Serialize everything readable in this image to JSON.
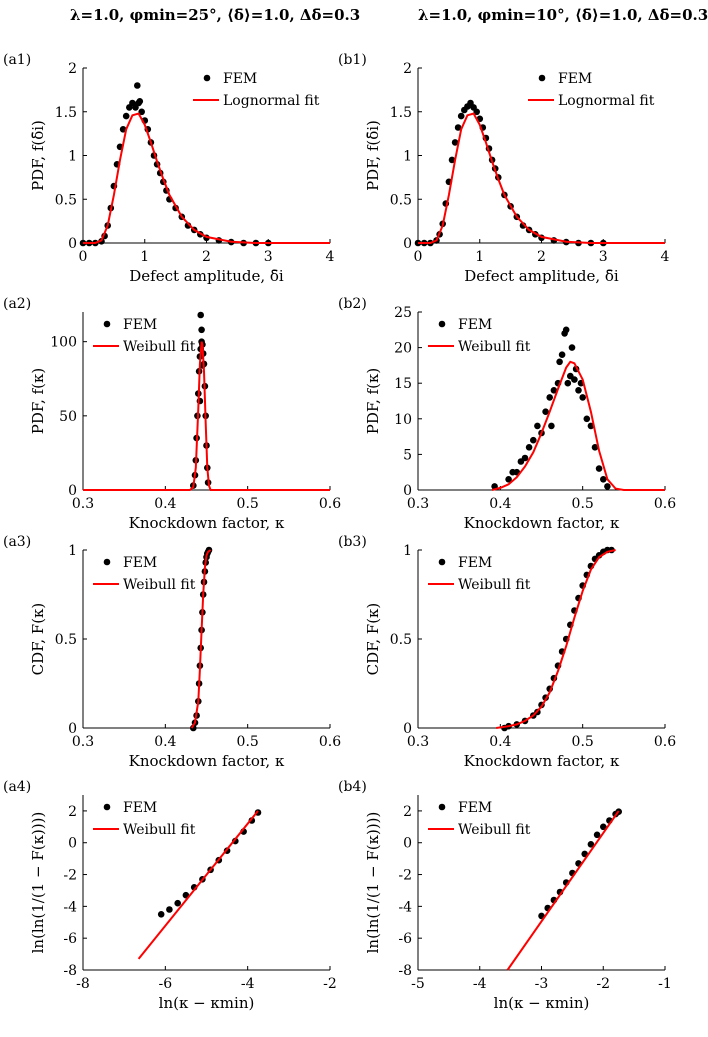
{
  "column_titles": [
    "λ=1.0, φmin=25°, ⟨δ̄⟩=1.0, Δδ̄=0.3",
    "λ=1.0, φmin=10°, ⟨δ̄⟩=1.0, Δδ̄=0.3"
  ],
  "colors": {
    "fem": "#000000",
    "fit": "#ff0000",
    "axis": "#000000"
  },
  "chart_data": [
    {
      "id": "a1",
      "panel_label": "(a1)",
      "type": "scatter",
      "title": "",
      "xlabel": "Defect amplitude, δ̄i",
      "ylabel": "PDF, f(δ̄i)",
      "xlim": [
        0,
        4
      ],
      "ylim": [
        0,
        2
      ],
      "xticks": [
        0,
        1,
        2,
        3,
        4
      ],
      "yticks": [
        0,
        0.5,
        1,
        1.5,
        2
      ],
      "tick_labels_x": [
        "0",
        "1",
        "2",
        "3",
        "4"
      ],
      "tick_labels_y": [
        "0",
        "0.5",
        "1",
        "1.5",
        "2"
      ],
      "legend_position": "top-right",
      "series": [
        {
          "name": "FEM",
          "kind": "points",
          "x": [
            0.0,
            0.1,
            0.2,
            0.3,
            0.35,
            0.4,
            0.45,
            0.5,
            0.55,
            0.6,
            0.65,
            0.7,
            0.75,
            0.8,
            0.85,
            0.9,
            0.95,
            1.0,
            1.05,
            1.1,
            1.15,
            1.2,
            1.25,
            1.3,
            1.35,
            1.4,
            1.5,
            1.6,
            1.7,
            1.8,
            1.9,
            2.0,
            2.2,
            2.4,
            2.6,
            2.8,
            3.0,
            0.88,
            0.92
          ],
          "y": [
            0.0,
            0.0,
            0.0,
            0.02,
            0.08,
            0.2,
            0.4,
            0.65,
            0.9,
            1.1,
            1.3,
            1.45,
            1.55,
            1.6,
            1.55,
            1.6,
            1.5,
            1.4,
            1.3,
            1.15,
            1.0,
            0.9,
            0.8,
            0.7,
            0.6,
            0.5,
            0.4,
            0.3,
            0.2,
            0.15,
            0.1,
            0.06,
            0.03,
            0.01,
            0.0,
            0.0,
            0.0,
            1.8,
            1.62
          ]
        },
        {
          "name": "Lognormal fit",
          "kind": "line",
          "x": [
            0,
            0.2,
            0.3,
            0.4,
            0.5,
            0.6,
            0.7,
            0.8,
            0.9,
            1.0,
            1.1,
            1.2,
            1.3,
            1.4,
            1.6,
            1.8,
            2.0,
            2.4,
            2.8,
            3.2,
            4.0
          ],
          "y": [
            0,
            0.0,
            0.03,
            0.2,
            0.55,
            0.95,
            1.3,
            1.46,
            1.48,
            1.35,
            1.15,
            0.93,
            0.73,
            0.55,
            0.3,
            0.15,
            0.07,
            0.015,
            0.0,
            0.0,
            0.0
          ]
        }
      ]
    },
    {
      "id": "b1",
      "panel_label": "(b1)",
      "type": "scatter",
      "title": "",
      "xlabel": "Defect amplitude, δ̄i",
      "ylabel": "PDF, f(δ̄i)",
      "xlim": [
        0,
        4
      ],
      "ylim": [
        0,
        2
      ],
      "xticks": [
        0,
        1,
        2,
        3,
        4
      ],
      "yticks": [
        0,
        0.5,
        1,
        1.5,
        2
      ],
      "tick_labels_x": [
        "0",
        "1",
        "2",
        "3",
        "4"
      ],
      "tick_labels_y": [
        "0",
        "0.5",
        "1",
        "1.5",
        "2"
      ],
      "legend_position": "top-right",
      "series": [
        {
          "name": "FEM",
          "kind": "points",
          "x": [
            0.0,
            0.1,
            0.2,
            0.3,
            0.35,
            0.4,
            0.45,
            0.5,
            0.55,
            0.6,
            0.65,
            0.7,
            0.75,
            0.8,
            0.85,
            0.9,
            0.95,
            1.0,
            1.05,
            1.1,
            1.15,
            1.2,
            1.25,
            1.3,
            1.4,
            1.5,
            1.6,
            1.7,
            1.8,
            1.9,
            2.0,
            2.2,
            2.4,
            2.6,
            2.8,
            3.0
          ],
          "y": [
            0.0,
            0.0,
            0.0,
            0.03,
            0.1,
            0.22,
            0.45,
            0.7,
            0.95,
            1.15,
            1.32,
            1.45,
            1.52,
            1.56,
            1.6,
            1.55,
            1.5,
            1.42,
            1.32,
            1.2,
            1.08,
            0.95,
            0.85,
            0.75,
            0.55,
            0.42,
            0.3,
            0.2,
            0.15,
            0.1,
            0.06,
            0.03,
            0.01,
            0.0,
            0.0,
            0.0
          ]
        },
        {
          "name": "Lognormal fit",
          "kind": "line",
          "x": [
            0,
            0.2,
            0.3,
            0.4,
            0.5,
            0.6,
            0.7,
            0.8,
            0.9,
            1.0,
            1.1,
            1.2,
            1.3,
            1.4,
            1.6,
            1.8,
            2.0,
            2.4,
            2.8,
            3.2,
            4.0
          ],
          "y": [
            0,
            0.0,
            0.03,
            0.2,
            0.55,
            0.95,
            1.3,
            1.46,
            1.48,
            1.35,
            1.15,
            0.93,
            0.73,
            0.55,
            0.3,
            0.15,
            0.07,
            0.015,
            0.0,
            0.0,
            0.0
          ]
        }
      ]
    },
    {
      "id": "a2",
      "panel_label": "(a2)",
      "type": "scatter",
      "title": "",
      "xlabel": "Knockdown factor, κ",
      "ylabel": "PDF, f(κ)",
      "xlim": [
        0.3,
        0.6
      ],
      "ylim": [
        0,
        120
      ],
      "xticks": [
        0.3,
        0.4,
        0.5,
        0.6
      ],
      "yticks": [
        0,
        50,
        100
      ],
      "tick_labels_x": [
        "0.3",
        "0.4",
        "0.5",
        "0.6"
      ],
      "tick_labels_y": [
        "0",
        "50",
        "100"
      ],
      "legend_position": "top-left",
      "series": [
        {
          "name": "FEM",
          "kind": "points",
          "x": [
            0.434,
            0.436,
            0.437,
            0.438,
            0.439,
            0.44,
            0.441,
            0.442,
            0.443,
            0.444,
            0.445,
            0.446,
            0.447,
            0.448,
            0.449,
            0.45,
            0.451,
            0.452,
            0.443,
            0.444,
            0.445,
            0.442
          ],
          "y": [
            3,
            10,
            20,
            35,
            50,
            65,
            80,
            90,
            95,
            100,
            98,
            92,
            85,
            70,
            50,
            30,
            15,
            5,
            118,
            108,
            84,
            60
          ]
        },
        {
          "name": "Weibull fit",
          "kind": "line",
          "x": [
            0.3,
            0.43,
            0.434,
            0.437,
            0.44,
            0.442,
            0.444,
            0.445,
            0.447,
            0.449,
            0.451,
            0.453,
            0.455,
            0.6
          ],
          "y": [
            0,
            0,
            2,
            15,
            55,
            85,
            100,
            98,
            80,
            45,
            15,
            3,
            0,
            0
          ]
        }
      ]
    },
    {
      "id": "b2",
      "panel_label": "(b2)",
      "type": "scatter",
      "title": "",
      "xlabel": "Knockdown factor, κ",
      "ylabel": "PDF, f(κ)",
      "xlim": [
        0.3,
        0.6
      ],
      "ylim": [
        0,
        25
      ],
      "xticks": [
        0.3,
        0.4,
        0.5,
        0.6
      ],
      "yticks": [
        0,
        5,
        10,
        15,
        20,
        25
      ],
      "tick_labels_x": [
        "0.3",
        "0.4",
        "0.5",
        "0.6"
      ],
      "tick_labels_y": [
        "0",
        "5",
        "10",
        "15",
        "20",
        "25"
      ],
      "legend_position": "top-left",
      "series": [
        {
          "name": "FEM",
          "kind": "points",
          "x": [
            0.393,
            0.41,
            0.415,
            0.42,
            0.425,
            0.43,
            0.435,
            0.44,
            0.445,
            0.45,
            0.455,
            0.46,
            0.462,
            0.465,
            0.47,
            0.472,
            0.475,
            0.478,
            0.48,
            0.482,
            0.485,
            0.487,
            0.49,
            0.492,
            0.495,
            0.498,
            0.5,
            0.505,
            0.51,
            0.515,
            0.52,
            0.525,
            0.53
          ],
          "y": [
            0.5,
            1.5,
            2.5,
            2.5,
            4,
            4.5,
            6,
            7,
            9,
            8,
            11,
            13,
            9,
            14,
            15,
            18,
            19,
            22,
            22.5,
            15,
            16,
            20,
            15.5,
            17,
            14,
            15,
            13,
            10,
            9,
            6,
            3,
            1.5,
            0.5
          ]
        },
        {
          "name": "Weibull fit",
          "kind": "line",
          "x": [
            0.39,
            0.4,
            0.41,
            0.42,
            0.43,
            0.44,
            0.45,
            0.46,
            0.47,
            0.48,
            0.485,
            0.49,
            0.5,
            0.51,
            0.52,
            0.53,
            0.54,
            0.55,
            0.6
          ],
          "y": [
            0,
            0.3,
            0.8,
            1.8,
            3.3,
            5.3,
            8,
            11,
            14.2,
            17.2,
            18,
            17.8,
            15.5,
            11,
            5.5,
            1.5,
            0.2,
            0,
            0
          ]
        }
      ]
    },
    {
      "id": "a3",
      "panel_label": "(a3)",
      "type": "scatter",
      "title": "",
      "xlabel": "Knockdown factor, κ",
      "ylabel": "CDF, F(κ)",
      "xlim": [
        0.3,
        0.6
      ],
      "ylim": [
        0,
        1
      ],
      "xticks": [
        0.3,
        0.4,
        0.5,
        0.6
      ],
      "yticks": [
        0,
        0.5,
        1
      ],
      "tick_labels_x": [
        "0.3",
        "0.4",
        "0.5",
        "0.6"
      ],
      "tick_labels_y": [
        "0",
        "0.5",
        "1"
      ],
      "legend_position": "top-left",
      "series": [
        {
          "name": "FEM",
          "kind": "points",
          "x": [
            0.434,
            0.436,
            0.438,
            0.44,
            0.441,
            0.442,
            0.443,
            0.444,
            0.445,
            0.446,
            0.447,
            0.448,
            0.449,
            0.45,
            0.451,
            0.452,
            0.453
          ],
          "y": [
            0.0,
            0.03,
            0.07,
            0.15,
            0.25,
            0.35,
            0.45,
            0.55,
            0.65,
            0.75,
            0.82,
            0.88,
            0.93,
            0.96,
            0.98,
            0.99,
            1.0
          ]
        },
        {
          "name": "Weibull fit",
          "kind": "line",
          "x": [
            0.432,
            0.436,
            0.44,
            0.442,
            0.444,
            0.446,
            0.448,
            0.45,
            0.452,
            0.455
          ],
          "y": [
            0,
            0.03,
            0.15,
            0.33,
            0.55,
            0.75,
            0.9,
            0.97,
            0.99,
            1.0
          ]
        }
      ]
    },
    {
      "id": "b3",
      "panel_label": "(b3)",
      "type": "scatter",
      "title": "",
      "xlabel": "Knockdown factor, κ",
      "ylabel": "CDF, F(κ)",
      "xlim": [
        0.3,
        0.6
      ],
      "ylim": [
        0,
        1
      ],
      "xticks": [
        0.3,
        0.4,
        0.5,
        0.6
      ],
      "yticks": [
        0,
        0.5,
        1
      ],
      "tick_labels_x": [
        "0.3",
        "0.4",
        "0.5",
        "0.6"
      ],
      "tick_labels_y": [
        "0",
        "0.5",
        "1"
      ],
      "legend_position": "top-left",
      "series": [
        {
          "name": "FEM",
          "kind": "points",
          "x": [
            0.405,
            0.41,
            0.42,
            0.43,
            0.44,
            0.445,
            0.45,
            0.455,
            0.46,
            0.465,
            0.47,
            0.475,
            0.48,
            0.485,
            0.49,
            0.495,
            0.5,
            0.505,
            0.51,
            0.515,
            0.52,
            0.525,
            0.53,
            0.535
          ],
          "y": [
            0.0,
            0.01,
            0.02,
            0.04,
            0.07,
            0.09,
            0.13,
            0.17,
            0.22,
            0.28,
            0.35,
            0.43,
            0.5,
            0.58,
            0.66,
            0.73,
            0.8,
            0.86,
            0.91,
            0.95,
            0.97,
            0.99,
            1.0,
            1.0
          ]
        },
        {
          "name": "Weibull fit",
          "kind": "line",
          "x": [
            0.395,
            0.41,
            0.42,
            0.43,
            0.44,
            0.45,
            0.46,
            0.47,
            0.48,
            0.49,
            0.5,
            0.51,
            0.52,
            0.53,
            0.54
          ],
          "y": [
            0,
            0.01,
            0.02,
            0.04,
            0.07,
            0.12,
            0.2,
            0.32,
            0.46,
            0.62,
            0.77,
            0.89,
            0.96,
            0.99,
            1.0
          ]
        }
      ]
    },
    {
      "id": "a4",
      "panel_label": "(a4)",
      "type": "scatter",
      "title": "",
      "xlabel": "ln(κ − κmin)",
      "ylabel": "ln(ln(1/(1 − F(κ))))",
      "xlim": [
        -8,
        -2
      ],
      "ylim": [
        -8,
        3
      ],
      "xticks": [
        -8,
        -6,
        -4,
        -2
      ],
      "yticks": [
        -8,
        -6,
        -4,
        -2,
        0,
        2
      ],
      "tick_labels_x": [
        "-8",
        "-6",
        "-4",
        "-2"
      ],
      "tick_labels_y": [
        "-8",
        "-6",
        "-4",
        "-2",
        "0",
        "2"
      ],
      "legend_position": "top-left",
      "series": [
        {
          "name": "FEM",
          "kind": "points",
          "x": [
            -6.1,
            -5.9,
            -5.7,
            -5.5,
            -5.3,
            -5.1,
            -4.9,
            -4.7,
            -4.5,
            -4.3,
            -4.1,
            -3.9,
            -3.75
          ],
          "y": [
            -4.5,
            -4.2,
            -3.8,
            -3.3,
            -2.8,
            -2.3,
            -1.7,
            -1.1,
            -0.5,
            0.1,
            0.7,
            1.4,
            1.9
          ]
        },
        {
          "name": "Weibull fit",
          "kind": "line",
          "x": [
            -6.65,
            -3.75
          ],
          "y": [
            -7.3,
            2.0
          ]
        }
      ]
    },
    {
      "id": "b4",
      "panel_label": "(b4)",
      "type": "scatter",
      "title": "",
      "xlabel": "ln(κ − κmin)",
      "ylabel": "ln(ln(1/(1 − F(κ))))",
      "xlim": [
        -5,
        -1
      ],
      "ylim": [
        -8,
        3
      ],
      "xticks": [
        -5,
        -4,
        -3,
        -2,
        -1
      ],
      "yticks": [
        -8,
        -6,
        -4,
        -2,
        0,
        2
      ],
      "tick_labels_x": [
        "-5",
        "-4",
        "-3",
        "-2",
        "-1"
      ],
      "tick_labels_y": [
        "-8",
        "-6",
        "-4",
        "-2",
        "0",
        "2"
      ],
      "legend_position": "top-left",
      "series": [
        {
          "name": "FEM",
          "kind": "points",
          "x": [
            -3.0,
            -2.9,
            -2.8,
            -2.7,
            -2.6,
            -2.5,
            -2.4,
            -2.3,
            -2.2,
            -2.1,
            -2.0,
            -1.9,
            -1.8,
            -1.75
          ],
          "y": [
            -4.6,
            -4.1,
            -3.6,
            -3.1,
            -2.5,
            -1.9,
            -1.3,
            -0.7,
            -0.1,
            0.5,
            1.0,
            1.4,
            1.8,
            1.95
          ]
        },
        {
          "name": "Weibull fit",
          "kind": "line",
          "x": [
            -3.55,
            -1.75
          ],
          "y": [
            -8.0,
            2.0
          ]
        }
      ]
    }
  ]
}
